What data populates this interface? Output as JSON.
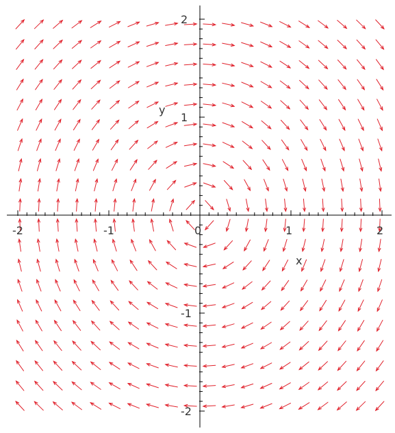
{
  "chart_data": {
    "type": "vector_field",
    "title": "",
    "xlabel": "x",
    "ylabel": "y",
    "xlim": [
      -2,
      2
    ],
    "ylim": [
      -2,
      2
    ],
    "x_ticks": [
      {
        "value": -2,
        "label": "-2"
      },
      {
        "value": -1,
        "label": "-1"
      },
      {
        "value": 0,
        "label": "0"
      },
      {
        "value": 1,
        "label": "1"
      },
      {
        "value": 2,
        "label": "2"
      }
    ],
    "y_ticks": [
      {
        "value": -2,
        "label": "-2"
      },
      {
        "value": -1,
        "label": "-1"
      },
      {
        "value": 1,
        "label": "1"
      },
      {
        "value": 2,
        "label": "2"
      }
    ],
    "grid": false,
    "arrow_color": "#e0202a",
    "axis_color": "#000000",
    "field": {
      "dx_sign_by_sign_of_y": 1,
      "dy_sign_by_sign_of_x": -1,
      "rows": 20,
      "cols": 20
    }
  }
}
